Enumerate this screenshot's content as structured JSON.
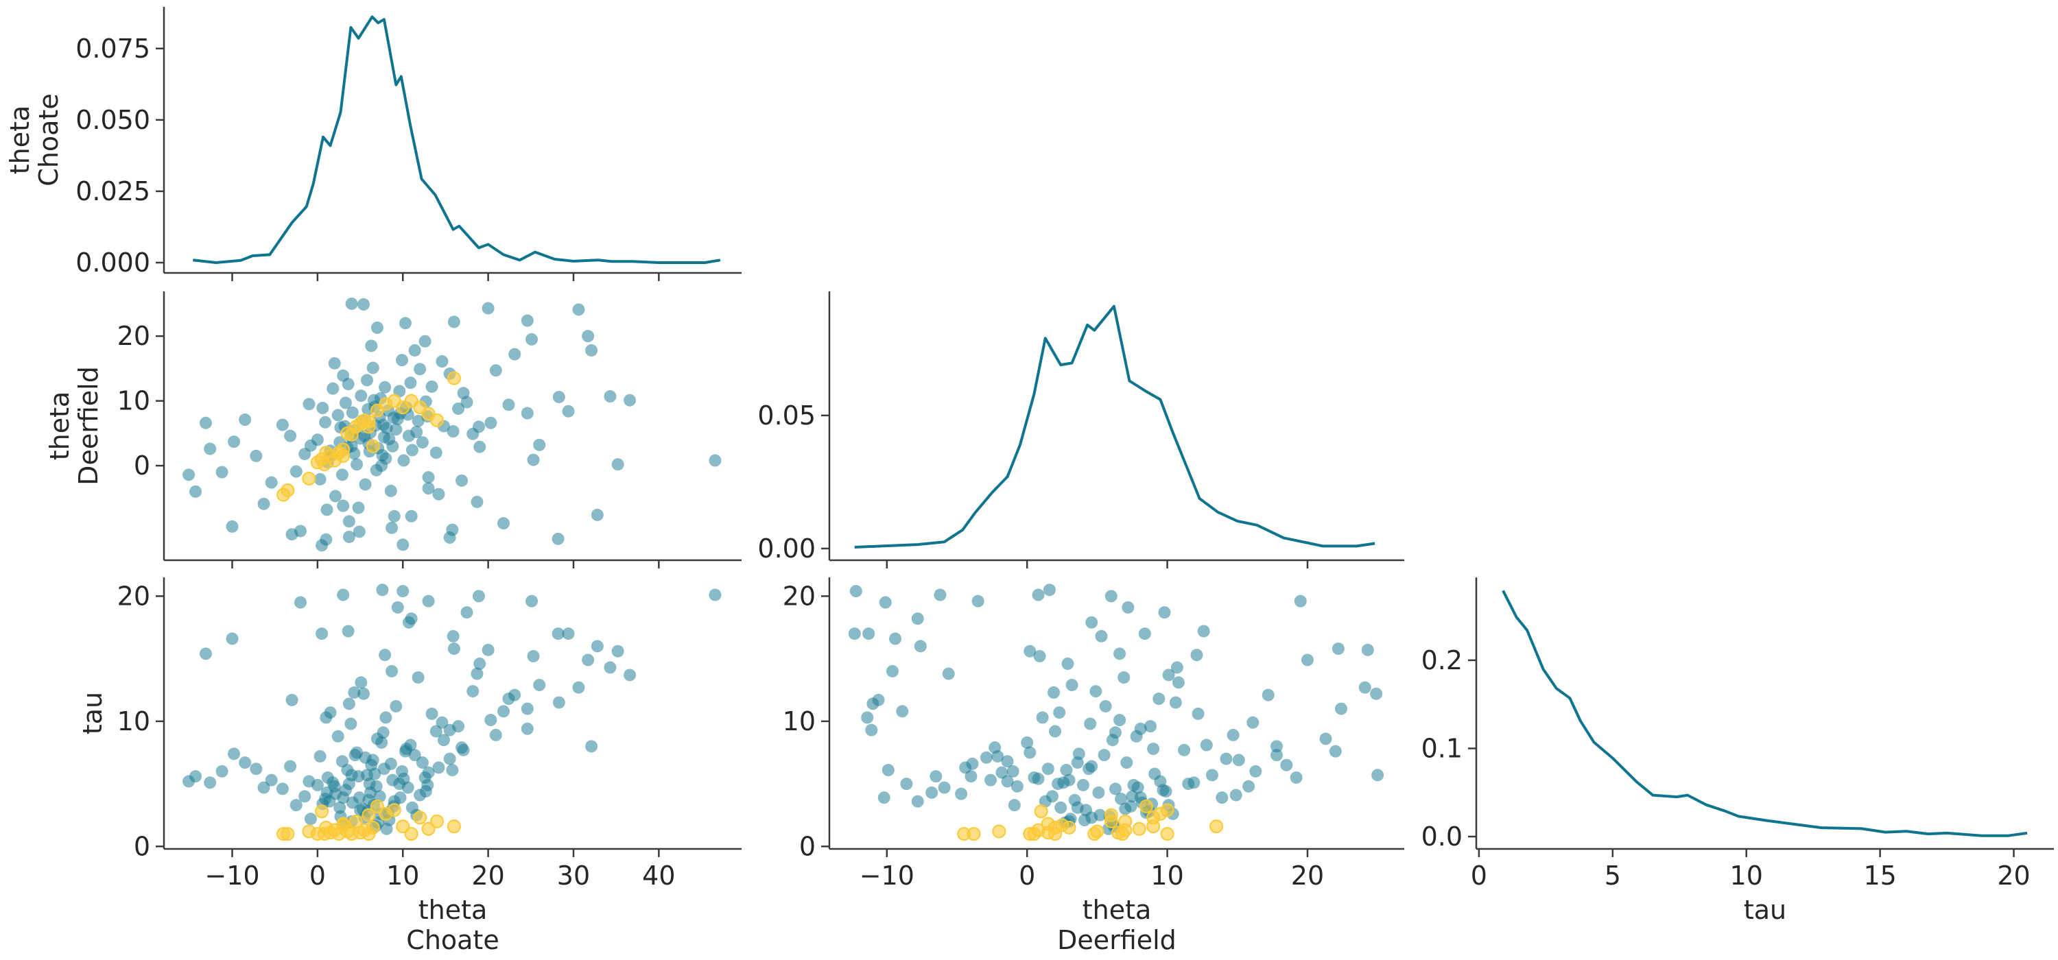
{
  "chart_data": {
    "type": "pair-plot",
    "colors": {
      "line": "#0f7490",
      "points": "#12758f",
      "divergences": "#fcc936"
    },
    "variables": [
      {
        "name": "theta",
        "coord": "Choate"
      },
      {
        "name": "theta",
        "coord": "Deerfield"
      },
      {
        "name": "tau",
        "coord": ""
      }
    ],
    "labels": {
      "choate_line1": "theta",
      "choate_line2": "Choate",
      "deerfield_line1": "theta",
      "deerfield_line2": "Deerfield",
      "tau": "tau"
    },
    "axes": {
      "theta_choate": {
        "lim": [
          -18,
          49.7
        ],
        "ticks": [
          -10,
          0,
          10,
          20,
          30,
          40
        ],
        "tick_labels": [
          "−10",
          "0",
          "10",
          "20",
          "30",
          "40"
        ]
      },
      "theta_deerfield_x": {
        "lim": [
          -14.1,
          26.9
        ],
        "ticks": [
          -10,
          0,
          10,
          20
        ],
        "tick_labels": [
          "−10",
          "0",
          "10",
          "20"
        ]
      },
      "theta_deerfield_y": {
        "lim": [
          -14.6,
          26.9
        ],
        "ticks": [
          0,
          10,
          20
        ],
        "tick_labels": [
          "0",
          "10",
          "20"
        ]
      },
      "tau_y": {
        "lim": [
          -0.2,
          21.5
        ],
        "ticks": [
          0,
          10,
          20
        ],
        "tick_labels": [
          "0",
          "10",
          "20"
        ]
      },
      "tau_x": {
        "lim": [
          -0.1,
          21.5
        ],
        "ticks": [
          0,
          5,
          10,
          15,
          20
        ],
        "tick_labels": [
          "0",
          "5",
          "10",
          "15",
          "20"
        ]
      },
      "kde_choate_y": {
        "lim": [
          -0.0036,
          0.0896
        ],
        "ticks": [
          0,
          0.025,
          0.05,
          0.075
        ],
        "tick_labels": [
          "0.000",
          "0.025",
          "0.050",
          "0.075"
        ]
      },
      "kde_deerfield_y": {
        "lim": [
          -0.0044,
          0.0966
        ],
        "ticks": [
          0,
          0.05
        ],
        "tick_labels": [
          "0.00",
          "0.05"
        ]
      },
      "kde_tau_y": {
        "lim": [
          -0.014,
          0.294
        ],
        "ticks": [
          0,
          0.1,
          0.2
        ],
        "tick_labels": [
          "0.0",
          "0.1",
          "0.2"
        ]
      }
    },
    "kde": {
      "theta_choate": [
        [
          -14.6,
          0.0009
        ],
        [
          -11.9,
          0.0
        ],
        [
          -9.0,
          0.0008
        ],
        [
          -7.6,
          0.0024
        ],
        [
          -5.6,
          0.0028
        ],
        [
          -3.0,
          0.014
        ],
        [
          -1.3,
          0.0196
        ],
        [
          -0.5,
          0.0276
        ],
        [
          0.65,
          0.044
        ],
        [
          1.5,
          0.041
        ],
        [
          2.7,
          0.0527
        ],
        [
          3.9,
          0.0824
        ],
        [
          4.8,
          0.0786
        ],
        [
          6.4,
          0.0861
        ],
        [
          7.1,
          0.084
        ],
        [
          7.8,
          0.0852
        ],
        [
          9.2,
          0.0623
        ],
        [
          9.8,
          0.0652
        ],
        [
          10.9,
          0.0478
        ],
        [
          12.2,
          0.0293
        ],
        [
          13.8,
          0.0237
        ],
        [
          15.9,
          0.0116
        ],
        [
          16.6,
          0.0128
        ],
        [
          18.9,
          0.0052
        ],
        [
          20.0,
          0.0064
        ],
        [
          21.8,
          0.0028
        ],
        [
          23.7,
          0.0009
        ],
        [
          25.5,
          0.0037
        ],
        [
          27.8,
          0.0012
        ],
        [
          30.0,
          0.0005
        ],
        [
          32.9,
          0.0009
        ],
        [
          34.5,
          0.0004
        ],
        [
          36.9,
          0.0004
        ],
        [
          40.0,
          0.0
        ],
        [
          45.4,
          0.0
        ],
        [
          47.2,
          0.0009
        ]
      ],
      "theta_deerfield": [
        [
          -12.3,
          0.0005
        ],
        [
          -7.8,
          0.0015
        ],
        [
          -5.9,
          0.0025
        ],
        [
          -4.6,
          0.007
        ],
        [
          -3.7,
          0.0135
        ],
        [
          -2.5,
          0.021
        ],
        [
          -1.4,
          0.027
        ],
        [
          -0.5,
          0.039
        ],
        [
          0.5,
          0.058
        ],
        [
          1.3,
          0.079
        ],
        [
          2.4,
          0.069
        ],
        [
          3.2,
          0.0697
        ],
        [
          4.3,
          0.084
        ],
        [
          4.8,
          0.082
        ],
        [
          6.2,
          0.091
        ],
        [
          7.3,
          0.063
        ],
        [
          8.5,
          0.059
        ],
        [
          9.5,
          0.056
        ],
        [
          10.4,
          0.0435
        ],
        [
          12.3,
          0.0188
        ],
        [
          13.6,
          0.0137
        ],
        [
          15.0,
          0.0103
        ],
        [
          16.4,
          0.0088
        ],
        [
          18.3,
          0.004
        ],
        [
          21.1,
          0.0009
        ],
        [
          23.5,
          0.0009
        ],
        [
          24.8,
          0.0019
        ]
      ],
      "tau": [
        [
          0.9,
          0.279
        ],
        [
          1.4,
          0.249
        ],
        [
          1.8,
          0.234
        ],
        [
          2.4,
          0.19
        ],
        [
          2.9,
          0.168
        ],
        [
          3.4,
          0.157
        ],
        [
          3.8,
          0.131
        ],
        [
          4.3,
          0.107
        ],
        [
          5.0,
          0.089
        ],
        [
          5.9,
          0.062
        ],
        [
          6.5,
          0.047
        ],
        [
          7.4,
          0.045
        ],
        [
          7.8,
          0.047
        ],
        [
          8.5,
          0.036
        ],
        [
          9.2,
          0.029
        ],
        [
          9.7,
          0.023
        ],
        [
          10.8,
          0.018
        ],
        [
          11.8,
          0.014
        ],
        [
          12.8,
          0.01
        ],
        [
          14.3,
          0.009
        ],
        [
          15.2,
          0.005
        ],
        [
          16.0,
          0.006
        ],
        [
          16.8,
          0.003
        ],
        [
          17.5,
          0.004
        ],
        [
          18.8,
          0.001
        ],
        [
          19.8,
          0.001
        ],
        [
          20.5,
          0.004
        ]
      ]
    },
    "samples_columns": [
      "theta_choate",
      "theta_deerfield",
      "tau"
    ],
    "samples": [
      [
        6.2,
        5.1,
        4.3
      ],
      [
        3.5,
        2.8,
        6.1
      ],
      [
        8.9,
        7.4,
        3.2
      ],
      [
        1.2,
        0.5,
        5.5
      ],
      [
        10.4,
        9.0,
        7.8
      ],
      [
        5.0,
        4.2,
        2.9
      ],
      [
        7.7,
        6.3,
        9.1
      ],
      [
        -1.5,
        1.8,
        4.0
      ],
      [
        12.3,
        3.6,
        6.7
      ],
      [
        4.1,
        8.2,
        3.5
      ],
      [
        0.3,
        -2.1,
        7.2
      ],
      [
        9.6,
        11.5,
        5.0
      ],
      [
        2.7,
        5.9,
        2.4
      ],
      [
        14.8,
        6.1,
        8.5
      ],
      [
        6.9,
        -0.7,
        4.8
      ],
      [
        11.1,
        2.4,
        3.1
      ],
      [
        -3.2,
        4.6,
        6.4
      ],
      [
        5.8,
        13.2,
        5.7
      ],
      [
        8.0,
        1.1,
        10.3
      ],
      [
        3.3,
        9.7,
        4.5
      ],
      [
        16.5,
        8.8,
        9.6
      ],
      [
        0.9,
        6.7,
        3.8
      ],
      [
        7.4,
        10.4,
        2.6
      ],
      [
        13.0,
        -1.8,
        5.9
      ],
      [
        4.6,
        0.2,
        7.5
      ],
      [
        9.2,
        5.6,
        11.2
      ],
      [
        -5.4,
        -2.6,
        5.3
      ],
      [
        6.5,
        15.1,
        6.9
      ],
      [
        2.1,
        -4.7,
        4.2
      ],
      [
        10.9,
        12.8,
        8.1
      ],
      [
        18.2,
        4.9,
        12.4
      ],
      [
        5.3,
        7.0,
        3.0
      ],
      [
        -0.8,
        3.1,
        2.2
      ],
      [
        8.6,
        -3.9,
        6.6
      ],
      [
        12.7,
        9.9,
        4.4
      ],
      [
        3.9,
        4.5,
        9.8
      ],
      [
        15.5,
        14.2,
        7.0
      ],
      [
        1.8,
        11.9,
        5.1
      ],
      [
        7.1,
        2.7,
        1.9
      ],
      [
        20.3,
        6.6,
        10.1
      ],
      [
        -7.2,
        1.5,
        6.2
      ],
      [
        4.8,
        -6.5,
        5.6
      ],
      [
        11.8,
        6.9,
        13.5
      ],
      [
        6.0,
        3.4,
        3.7
      ],
      [
        9.9,
        16.3,
        6.0
      ],
      [
        -2.5,
        -0.9,
        3.3
      ],
      [
        13.9,
        2.0,
        9.2
      ],
      [
        2.4,
        7.8,
        8.8
      ],
      [
        8.3,
        8.5,
        2.7
      ],
      [
        17.1,
        11.2,
        7.7
      ],
      [
        0.0,
        4.0,
        4.9
      ],
      [
        5.6,
        -2.9,
        7.1
      ],
      [
        22.4,
        9.4,
        11.8
      ],
      [
        3.0,
        13.9,
        3.9
      ],
      [
        10.1,
        0.8,
        5.4
      ],
      [
        7.9,
        12.1,
        15.3
      ],
      [
        -4.1,
        6.3,
        4.6
      ],
      [
        14.2,
        -4.4,
        6.3
      ],
      [
        1.5,
        2.3,
        10.7
      ],
      [
        6.7,
        9.1,
        5.8
      ],
      [
        19.0,
        2.9,
        14.6
      ],
      [
        -9.8,
        3.7,
        7.4
      ],
      [
        12.0,
        14.9,
        4.1
      ],
      [
        4.3,
        1.9,
        12.3
      ],
      [
        9.0,
        -7.8,
        3.6
      ],
      [
        24.6,
        8.1,
        9.4
      ],
      [
        2.9,
        -1.4,
        6.8
      ],
      [
        15.9,
        5.3,
        16.8
      ],
      [
        -1.0,
        9.5,
        5.2
      ],
      [
        8.4,
        4.1,
        2.1
      ],
      [
        11.4,
        17.8,
        7.3
      ],
      [
        5.1,
        10.8,
        13.1
      ],
      [
        26.0,
        3.2,
        12.9
      ],
      [
        -6.3,
        -5.9,
        4.7
      ],
      [
        7.5,
        0.0,
        8.3
      ],
      [
        13.4,
        12.2,
        10.6
      ],
      [
        3.7,
        -8.6,
        5.0
      ],
      [
        20.9,
        14.7,
        8.9
      ],
      [
        0.6,
        8.9,
        3.4
      ],
      [
        10.7,
        4.6,
        17.9
      ],
      [
        28.3,
        10.6,
        11.5
      ],
      [
        6.3,
        18.5,
        6.5
      ],
      [
        -11.2,
        -1.0,
        6.0
      ],
      [
        16.9,
        -2.3,
        7.9
      ],
      [
        2.0,
        15.8,
        4.8
      ],
      [
        9.4,
        7.2,
        19.1
      ],
      [
        23.1,
        17.2,
        12.1
      ],
      [
        4.9,
        -10.2,
        3.9
      ],
      [
        12.6,
        19.2,
        5.5
      ],
      [
        -8.5,
        7.1,
        6.7
      ],
      [
        18.7,
        -5.6,
        13.8
      ],
      [
        7.0,
        21.3,
        8.6
      ],
      [
        25.3,
        0.9,
        15.2
      ],
      [
        1.1,
        -6.8,
        4.3
      ],
      [
        14.6,
        16.1,
        9.9
      ],
      [
        3.6,
        12.6,
        17.2
      ],
      [
        21.8,
        -8.9,
        10.8
      ],
      [
        -12.6,
        2.6,
        5.1
      ],
      [
        10.3,
        22.0,
        7.6
      ],
      [
        8.7,
        -9.6,
        14.0
      ],
      [
        30.6,
        24.1,
        12.7
      ],
      [
        24.6,
        22.4,
        11.0
      ],
      [
        31.7,
        20.0,
        14.9
      ],
      [
        32.1,
        17.8,
        8.0
      ],
      [
        34.3,
        10.7,
        14.3
      ],
      [
        36.6,
        10.1,
        13.7
      ],
      [
        35.2,
        0.2,
        15.6
      ],
      [
        32.8,
        -7.6,
        16.0
      ],
      [
        28.2,
        -11.3,
        17.0
      ],
      [
        5.4,
        24.9,
        12.2
      ],
      [
        46.6,
        0.8,
        20.1
      ],
      [
        -15.1,
        -1.4,
        5.2
      ],
      [
        -14.3,
        -4.0,
        5.6
      ],
      [
        -13.1,
        6.6,
        15.4
      ],
      [
        15.5,
        -11.1,
        9.3
      ],
      [
        15.8,
        -9.9,
        6.1
      ],
      [
        3.7,
        -11.0,
        11.4
      ],
      [
        -10.0,
        -9.4,
        16.6
      ],
      [
        10.0,
        -12.2,
        20.4
      ],
      [
        18.9,
        6.0,
        20.0
      ],
      [
        25.1,
        19.5,
        19.6
      ],
      [
        29.4,
        8.4,
        17.0
      ],
      [
        6.8,
        6.2,
        1.6
      ],
      [
        5.5,
        4.6,
        2.3
      ],
      [
        8.1,
        5.8,
        1.4
      ],
      [
        4.0,
        3.0,
        2.0
      ],
      [
        7.3,
        7.5,
        4.0
      ],
      [
        6.1,
        2.2,
        5.0
      ],
      [
        9.7,
        8.1,
        3.9
      ],
      [
        2.6,
        3.6,
        3.1
      ],
      [
        11.6,
        5.2,
        2.5
      ],
      [
        3.2,
        6.1,
        1.8
      ],
      [
        7.8,
        4.4,
        6.2
      ],
      [
        5.9,
        8.7,
        2.8
      ],
      [
        1.4,
        1.3,
        3.6
      ],
      [
        10.6,
        7.9,
        4.7
      ],
      [
        4.4,
        5.5,
        7.3
      ],
      [
        8.8,
        3.0,
        5.3
      ],
      [
        6.6,
        10.1,
        3.3
      ],
      [
        12.9,
        7.6,
        4.9
      ],
      [
        0.5,
        -12.3,
        17.0
      ],
      [
        -2.0,
        -10.1,
        19.5
      ],
      [
        3.0,
        -6.2,
        20.1
      ],
      [
        7.6,
        1.6,
        20.5
      ],
      [
        13.0,
        -3.5,
        19.6
      ],
      [
        11.0,
        -7.8,
        18.2
      ],
      [
        16.0,
        22.2,
        15.8
      ],
      [
        20.0,
        24.3,
        15.7
      ],
      [
        17.5,
        9.8,
        18.7
      ],
      [
        -3.0,
        -10.6,
        11.7
      ],
      [
        1.0,
        -11.4,
        10.3
      ],
      [
        4.0,
        25.0,
        5.7
      ]
    ],
    "divergences": [
      [
        -3.5,
        -3.8,
        1.0
      ],
      [
        -1.0,
        -2.0,
        1.2
      ],
      [
        0.0,
        0.5,
        1.0
      ],
      [
        0.5,
        1.0,
        2.8
      ],
      [
        1.0,
        2.0,
        1.5
      ],
      [
        1.5,
        1.5,
        1.1
      ],
      [
        2.0,
        0.8,
        1.3
      ],
      [
        2.5,
        2.0,
        1.0
      ],
      [
        3.0,
        1.5,
        1.8
      ],
      [
        3.5,
        5.0,
        1.2
      ],
      [
        4.0,
        4.8,
        1.0
      ],
      [
        4.5,
        6.0,
        2.0
      ],
      [
        5.0,
        6.5,
        1.1
      ],
      [
        5.5,
        7.0,
        1.3
      ],
      [
        6.0,
        6.8,
        1.0
      ],
      [
        6.5,
        3.0,
        1.5
      ],
      [
        7.0,
        8.5,
        3.2
      ],
      [
        8.0,
        9.5,
        2.6
      ],
      [
        9.0,
        10.0,
        2.9
      ],
      [
        10.0,
        9.0,
        1.6
      ],
      [
        11.0,
        10.0,
        1.0
      ],
      [
        12.0,
        9.0,
        2.3
      ],
      [
        13.0,
        8.0,
        1.4
      ],
      [
        14.0,
        7.0,
        2.0
      ],
      [
        16.0,
        13.5,
        1.6
      ],
      [
        -4.0,
        -4.5,
        1.0
      ],
      [
        3.0,
        2.5,
        1.7
      ],
      [
        0.8,
        0.2,
        1.0
      ],
      [
        6.0,
        6.0,
        2.5
      ]
    ]
  }
}
